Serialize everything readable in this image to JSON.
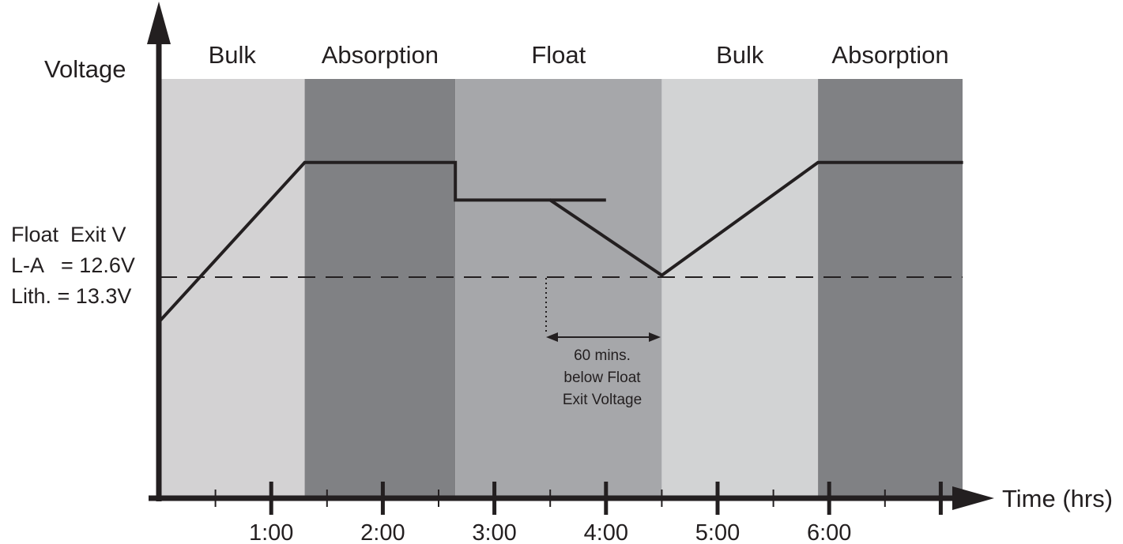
{
  "stages": [
    {
      "name": "Bulk",
      "start": 0,
      "end": 1.3,
      "color": "#d3d2d3"
    },
    {
      "name": "Absorption",
      "start": 1.3,
      "end": 2.65,
      "color": "#808184"
    },
    {
      "name": "Float",
      "start": 2.65,
      "end": 4.5,
      "color": "#a6a7aa"
    },
    {
      "name": "Bulk",
      "start": 4.5,
      "end": 5.9,
      "color": "#d2d3d4"
    },
    {
      "name": "Absorption",
      "start": 5.9,
      "end": 7.2,
      "color": "#808184"
    }
  ],
  "y_axis_title": "Voltage",
  "x_axis_title": "Time (hrs)",
  "float_exit": {
    "heading": "Float  Exit V",
    "lead_acid": "L-A   = 12.6V",
    "lithium": "Lith. = 13.3V"
  },
  "x_tick_labels": [
    "1:00",
    "2:00",
    "3:00",
    "4:00",
    "5:00",
    "6:00"
  ],
  "annotation": [
    "60 mins.",
    "below Float",
    "Exit Voltage"
  ],
  "colors": {
    "line": "#231f20",
    "axis": "#231f20"
  },
  "chart_data": {
    "type": "line",
    "x_unit": "hrs",
    "x_ticks": [
      1,
      2,
      3,
      4,
      5,
      6
    ],
    "voltage_trace": [
      {
        "t": 0,
        "level": 0.42
      },
      {
        "t": 1.3,
        "level": 0.8
      },
      {
        "t": 2.65,
        "level": 0.8
      },
      {
        "t": 2.65,
        "level": 0.71
      },
      {
        "t": 3.5,
        "level": 0.71
      },
      {
        "t": 4.5,
        "level": 0.53
      },
      {
        "t": 5.9,
        "level": 0.8
      },
      {
        "t": 7.2,
        "level": 0.8
      }
    ],
    "float_hold_continuation": [
      {
        "t": 3.5,
        "level": 0.71
      },
      {
        "t": 4.0,
        "level": 0.71
      }
    ],
    "float_exit_level": 0.71,
    "below_float_interval": {
      "start": 3.5,
      "end": 4.5
    }
  }
}
